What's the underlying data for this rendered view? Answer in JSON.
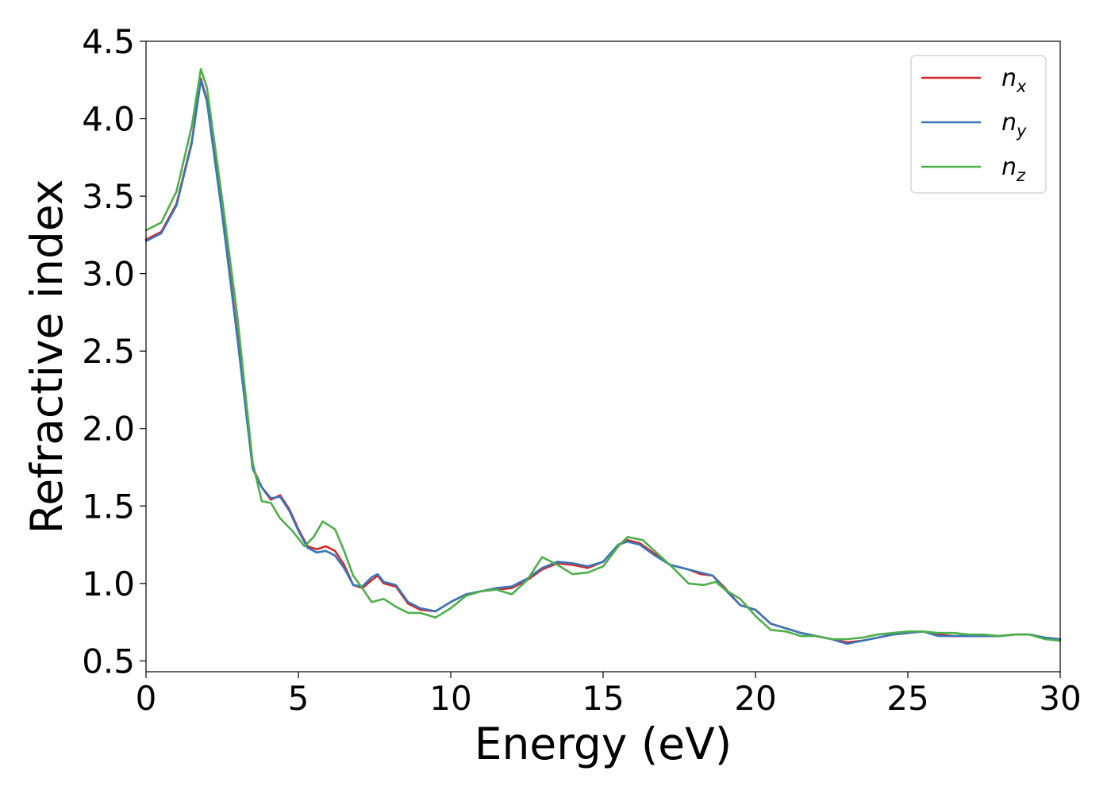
{
  "chart_data": {
    "type": "line",
    "xlabel": "Energy (eV)",
    "ylabel": "Refractive index",
    "xlim": [
      0,
      30
    ],
    "ylim": [
      0.43,
      4.5
    ],
    "xticks": [
      0,
      5,
      10,
      15,
      20,
      25,
      30
    ],
    "xtick_labels": [
      "0",
      "5",
      "10",
      "15",
      "20",
      "25",
      "30"
    ],
    "yticks": [
      0.5,
      1.0,
      1.5,
      2.0,
      2.5,
      3.0,
      3.5,
      4.0,
      4.5
    ],
    "ytick_labels": [
      "0.5",
      "1.0",
      "1.5",
      "2.0",
      "2.5",
      "3.0",
      "3.5",
      "4.0",
      "4.5"
    ],
    "grid": false,
    "legend_position": "top-right",
    "series": [
      {
        "name": "n_x",
        "legend_base": "n",
        "legend_sub": "x",
        "color": "#d62728",
        "points": [
          [
            0,
            3.22
          ],
          [
            0.5,
            3.27
          ],
          [
            1.0,
            3.45
          ],
          [
            1.5,
            3.85
          ],
          [
            1.8,
            4.26
          ],
          [
            2.0,
            4.12
          ],
          [
            2.5,
            3.4
          ],
          [
            3.0,
            2.6
          ],
          [
            3.5,
            1.75
          ],
          [
            3.8,
            1.62
          ],
          [
            4.1,
            1.54
          ],
          [
            4.4,
            1.57
          ],
          [
            4.7,
            1.48
          ],
          [
            5.0,
            1.35
          ],
          [
            5.3,
            1.24
          ],
          [
            5.6,
            1.22
          ],
          [
            5.9,
            1.24
          ],
          [
            6.2,
            1.21
          ],
          [
            6.5,
            1.12
          ],
          [
            6.8,
            0.99
          ],
          [
            7.1,
            0.97
          ],
          [
            7.4,
            1.02
          ],
          [
            7.6,
            1.05
          ],
          [
            7.8,
            1.0
          ],
          [
            8.2,
            0.98
          ],
          [
            8.6,
            0.87
          ],
          [
            9.0,
            0.83
          ],
          [
            9.5,
            0.82
          ],
          [
            10.0,
            0.88
          ],
          [
            10.5,
            0.93
          ],
          [
            11.0,
            0.95
          ],
          [
            11.5,
            0.96
          ],
          [
            12.0,
            0.97
          ],
          [
            12.5,
            1.02
          ],
          [
            13.0,
            1.09
          ],
          [
            13.5,
            1.13
          ],
          [
            14.0,
            1.12
          ],
          [
            14.5,
            1.1
          ],
          [
            15.0,
            1.14
          ],
          [
            15.5,
            1.25
          ],
          [
            15.8,
            1.28
          ],
          [
            16.2,
            1.26
          ],
          [
            16.7,
            1.19
          ],
          [
            17.2,
            1.12
          ],
          [
            17.8,
            1.09
          ],
          [
            18.2,
            1.06
          ],
          [
            18.6,
            1.05
          ],
          [
            19.0,
            0.97
          ],
          [
            19.5,
            0.86
          ],
          [
            20.0,
            0.83
          ],
          [
            20.5,
            0.74
          ],
          [
            21.0,
            0.71
          ],
          [
            21.5,
            0.68
          ],
          [
            22.0,
            0.66
          ],
          [
            22.5,
            0.64
          ],
          [
            23.0,
            0.62
          ],
          [
            23.5,
            0.63
          ],
          [
            24.0,
            0.65
          ],
          [
            24.5,
            0.67
          ],
          [
            25.0,
            0.68
          ],
          [
            25.5,
            0.69
          ],
          [
            26.0,
            0.67
          ],
          [
            26.5,
            0.66
          ],
          [
            27.0,
            0.66
          ],
          [
            27.5,
            0.66
          ],
          [
            28.0,
            0.66
          ],
          [
            28.5,
            0.67
          ],
          [
            29.0,
            0.67
          ],
          [
            29.5,
            0.65
          ],
          [
            30.0,
            0.64
          ]
        ]
      },
      {
        "name": "n_y",
        "legend_base": "n",
        "legend_sub": "y",
        "color": "#3a75b8",
        "points": [
          [
            0,
            3.21
          ],
          [
            0.5,
            3.26
          ],
          [
            1.0,
            3.44
          ],
          [
            1.5,
            3.84
          ],
          [
            1.8,
            4.25
          ],
          [
            2.0,
            4.11
          ],
          [
            2.5,
            3.38
          ],
          [
            3.0,
            2.58
          ],
          [
            3.5,
            1.74
          ],
          [
            3.8,
            1.62
          ],
          [
            4.1,
            1.55
          ],
          [
            4.4,
            1.56
          ],
          [
            4.7,
            1.47
          ],
          [
            5.0,
            1.34
          ],
          [
            5.3,
            1.23
          ],
          [
            5.6,
            1.2
          ],
          [
            5.9,
            1.21
          ],
          [
            6.2,
            1.18
          ],
          [
            6.5,
            1.1
          ],
          [
            6.8,
            0.99
          ],
          [
            7.1,
            0.98
          ],
          [
            7.4,
            1.04
          ],
          [
            7.6,
            1.06
          ],
          [
            7.8,
            1.01
          ],
          [
            8.2,
            0.99
          ],
          [
            8.6,
            0.88
          ],
          [
            9.0,
            0.84
          ],
          [
            9.5,
            0.82
          ],
          [
            10.0,
            0.88
          ],
          [
            10.5,
            0.93
          ],
          [
            11.0,
            0.95
          ],
          [
            11.5,
            0.97
          ],
          [
            12.0,
            0.98
          ],
          [
            12.5,
            1.03
          ],
          [
            13.0,
            1.1
          ],
          [
            13.5,
            1.14
          ],
          [
            14.0,
            1.13
          ],
          [
            14.5,
            1.11
          ],
          [
            15.0,
            1.14
          ],
          [
            15.5,
            1.25
          ],
          [
            15.8,
            1.27
          ],
          [
            16.2,
            1.25
          ],
          [
            16.7,
            1.18
          ],
          [
            17.2,
            1.12
          ],
          [
            17.8,
            1.09
          ],
          [
            18.2,
            1.07
          ],
          [
            18.6,
            1.05
          ],
          [
            19.0,
            0.96
          ],
          [
            19.5,
            0.86
          ],
          [
            20.0,
            0.83
          ],
          [
            20.5,
            0.74
          ],
          [
            21.0,
            0.71
          ],
          [
            21.5,
            0.68
          ],
          [
            22.0,
            0.66
          ],
          [
            22.5,
            0.64
          ],
          [
            23.0,
            0.61
          ],
          [
            23.5,
            0.63
          ],
          [
            24.0,
            0.65
          ],
          [
            24.5,
            0.67
          ],
          [
            25.0,
            0.68
          ],
          [
            25.5,
            0.69
          ],
          [
            26.0,
            0.66
          ],
          [
            26.5,
            0.66
          ],
          [
            27.0,
            0.66
          ],
          [
            27.5,
            0.66
          ],
          [
            28.0,
            0.66
          ],
          [
            28.5,
            0.67
          ],
          [
            29.0,
            0.67
          ],
          [
            29.5,
            0.65
          ],
          [
            30.0,
            0.64
          ]
        ]
      },
      {
        "name": "n_z",
        "legend_base": "n",
        "legend_sub": "z",
        "color": "#4daf4a",
        "points": [
          [
            0,
            3.28
          ],
          [
            0.5,
            3.33
          ],
          [
            1.0,
            3.53
          ],
          [
            1.5,
            3.95
          ],
          [
            1.8,
            4.32
          ],
          [
            2.0,
            4.2
          ],
          [
            2.5,
            3.48
          ],
          [
            3.0,
            2.72
          ],
          [
            3.5,
            1.78
          ],
          [
            3.8,
            1.53
          ],
          [
            4.1,
            1.52
          ],
          [
            4.4,
            1.42
          ],
          [
            4.8,
            1.34
          ],
          [
            5.2,
            1.24
          ],
          [
            5.5,
            1.3
          ],
          [
            5.8,
            1.4
          ],
          [
            6.2,
            1.35
          ],
          [
            6.5,
            1.21
          ],
          [
            6.8,
            1.05
          ],
          [
            7.1,
            0.97
          ],
          [
            7.4,
            0.88
          ],
          [
            7.8,
            0.9
          ],
          [
            8.2,
            0.85
          ],
          [
            8.6,
            0.81
          ],
          [
            9.0,
            0.81
          ],
          [
            9.5,
            0.78
          ],
          [
            10.0,
            0.84
          ],
          [
            10.5,
            0.92
          ],
          [
            11.0,
            0.95
          ],
          [
            11.5,
            0.96
          ],
          [
            12.0,
            0.93
          ],
          [
            12.5,
            1.02
          ],
          [
            13.0,
            1.17
          ],
          [
            13.5,
            1.12
          ],
          [
            14.0,
            1.06
          ],
          [
            14.5,
            1.07
          ],
          [
            15.0,
            1.11
          ],
          [
            15.5,
            1.24
          ],
          [
            15.8,
            1.3
          ],
          [
            16.3,
            1.28
          ],
          [
            16.8,
            1.19
          ],
          [
            17.3,
            1.1
          ],
          [
            17.8,
            1.0
          ],
          [
            18.3,
            0.99
          ],
          [
            18.7,
            1.01
          ],
          [
            19.0,
            0.96
          ],
          [
            19.5,
            0.9
          ],
          [
            20.0,
            0.79
          ],
          [
            20.5,
            0.7
          ],
          [
            21.0,
            0.69
          ],
          [
            21.5,
            0.66
          ],
          [
            22.0,
            0.66
          ],
          [
            22.5,
            0.64
          ],
          [
            23.0,
            0.64
          ],
          [
            23.5,
            0.65
          ],
          [
            24.0,
            0.67
          ],
          [
            24.5,
            0.68
          ],
          [
            25.0,
            0.69
          ],
          [
            25.5,
            0.69
          ],
          [
            26.0,
            0.68
          ],
          [
            26.5,
            0.68
          ],
          [
            27.0,
            0.67
          ],
          [
            27.5,
            0.67
          ],
          [
            28.0,
            0.66
          ],
          [
            28.5,
            0.67
          ],
          [
            29.0,
            0.67
          ],
          [
            29.5,
            0.64
          ],
          [
            30.0,
            0.63
          ]
        ]
      }
    ]
  }
}
